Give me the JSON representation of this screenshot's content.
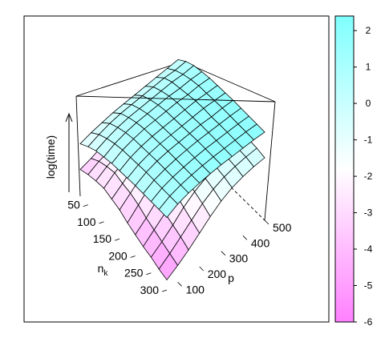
{
  "chart_data": {
    "type": "surface3d",
    "title": "",
    "zlabel": "log(time)",
    "xlabel_main": "n",
    "xlabel_sub": "k",
    "ylabel": "p",
    "x_ticks": [
      "50",
      "100",
      "150",
      "200",
      "250",
      "300"
    ],
    "y_ticks": [
      "100",
      "200",
      "300",
      "400",
      "500"
    ],
    "n_k": [
      25,
      50,
      75,
      100,
      125,
      150,
      175,
      200,
      225,
      250,
      275,
      300
    ],
    "p": [
      50,
      100,
      150,
      200,
      250,
      300,
      350,
      400,
      450,
      500
    ],
    "zlim": [
      -6,
      2.4
    ],
    "surfaces": [
      {
        "values": [
          [
            -3.6,
            -3.3,
            -2.9,
            -2.6,
            -2.5,
            -2.4,
            -2.3,
            -2.2,
            -2.15,
            -2.1
          ],
          [
            -3.3,
            -2.8,
            -2.5,
            -2.1,
            -1.9,
            -1.8,
            -1.7,
            -1.6,
            -1.55,
            -1.5
          ],
          [
            -3.1,
            -2.5,
            -2.1,
            -1.7,
            -1.5,
            -1.4,
            -1.3,
            -1.2,
            -1.15,
            -1.1
          ],
          [
            -3.0,
            -2.3,
            -1.8,
            -1.5,
            -1.3,
            -1.1,
            -1.0,
            -0.9,
            -0.85,
            -0.8
          ],
          [
            -3.2,
            -2.5,
            -1.7,
            -1.3,
            -1.1,
            -0.9,
            -0.8,
            -0.7,
            -0.65,
            -0.6
          ],
          [
            -3.4,
            -2.6,
            -1.8,
            -1.2,
            -1.0,
            -0.8,
            -0.7,
            -0.6,
            -0.55,
            -0.5
          ],
          [
            -3.8,
            -2.9,
            -2.0,
            -1.3,
            -0.9,
            -0.7,
            -0.6,
            -0.5,
            -0.45,
            -0.4
          ],
          [
            -4.1,
            -3.3,
            -2.4,
            -1.5,
            -1.0,
            -0.7,
            -0.55,
            -0.45,
            -0.4,
            -0.35
          ],
          [
            -4.4,
            -3.6,
            -2.8,
            -1.8,
            -1.2,
            -0.8,
            -0.6,
            -0.45,
            -0.35,
            -0.3
          ],
          [
            -4.6,
            -3.9,
            -3.1,
            -2.2,
            -1.5,
            -1.0,
            -0.7,
            -0.5,
            -0.4,
            -0.3
          ],
          [
            -4.9,
            -4.2,
            -3.4,
            -2.6,
            -1.8,
            -1.2,
            -0.8,
            -0.55,
            -0.4,
            -0.3
          ],
          [
            -5.1,
            -4.5,
            -3.8,
            -3.0,
            -2.2,
            -1.5,
            -1.0,
            -0.7,
            -0.5,
            -0.4
          ]
        ]
      },
      {
        "values": [
          [
            -1.3,
            -1.0,
            -0.8,
            -0.6,
            -0.5,
            -0.4,
            -0.3,
            -0.2,
            -0.1,
            0.0
          ],
          [
            -0.8,
            -0.4,
            -0.1,
            0.1,
            0.2,
            0.3,
            0.4,
            0.5,
            0.5,
            0.6
          ],
          [
            -0.4,
            0.0,
            0.3,
            0.5,
            0.6,
            0.7,
            0.8,
            0.9,
            0.9,
            1.0
          ],
          [
            -0.2,
            0.3,
            0.6,
            0.8,
            0.9,
            1.0,
            1.1,
            1.1,
            1.2,
            1.2
          ],
          [
            0.0,
            0.5,
            0.8,
            1.0,
            1.1,
            1.2,
            1.3,
            1.3,
            1.4,
            1.4
          ],
          [
            0.1,
            0.6,
            0.9,
            1.1,
            1.2,
            1.3,
            1.4,
            1.5,
            1.5,
            1.5
          ],
          [
            0.2,
            0.7,
            1.0,
            1.2,
            1.3,
            1.4,
            1.5,
            1.6,
            1.6,
            1.6
          ],
          [
            0.3,
            0.8,
            1.1,
            1.3,
            1.4,
            1.5,
            1.6,
            1.6,
            1.7,
            1.7
          ],
          [
            0.35,
            0.85,
            1.15,
            1.35,
            1.5,
            1.6,
            1.65,
            1.7,
            1.75,
            1.75
          ],
          [
            0.4,
            0.9,
            1.2,
            1.4,
            1.55,
            1.65,
            1.7,
            1.75,
            1.8,
            1.8
          ],
          [
            0.45,
            0.95,
            1.25,
            1.45,
            1.6,
            1.7,
            1.75,
            1.8,
            1.85,
            1.85
          ],
          [
            0.5,
            1.0,
            1.3,
            1.5,
            1.65,
            1.75,
            1.8,
            1.85,
            1.9,
            1.9
          ]
        ]
      }
    ],
    "colorbar": {
      "range": [
        -6,
        2.4
      ],
      "ticks": [
        "2",
        "1",
        "0",
        "-1",
        "-2",
        "-3",
        "-4",
        "-5",
        "-6"
      ],
      "tick_values": [
        2,
        1,
        0,
        -1,
        -2,
        -3,
        -4,
        -5,
        -6
      ],
      "colors": {
        "low": "#ff80ff",
        "mid": "#ffffff",
        "high": "#80ffff"
      }
    },
    "grid": false,
    "legend_placement": "right"
  }
}
